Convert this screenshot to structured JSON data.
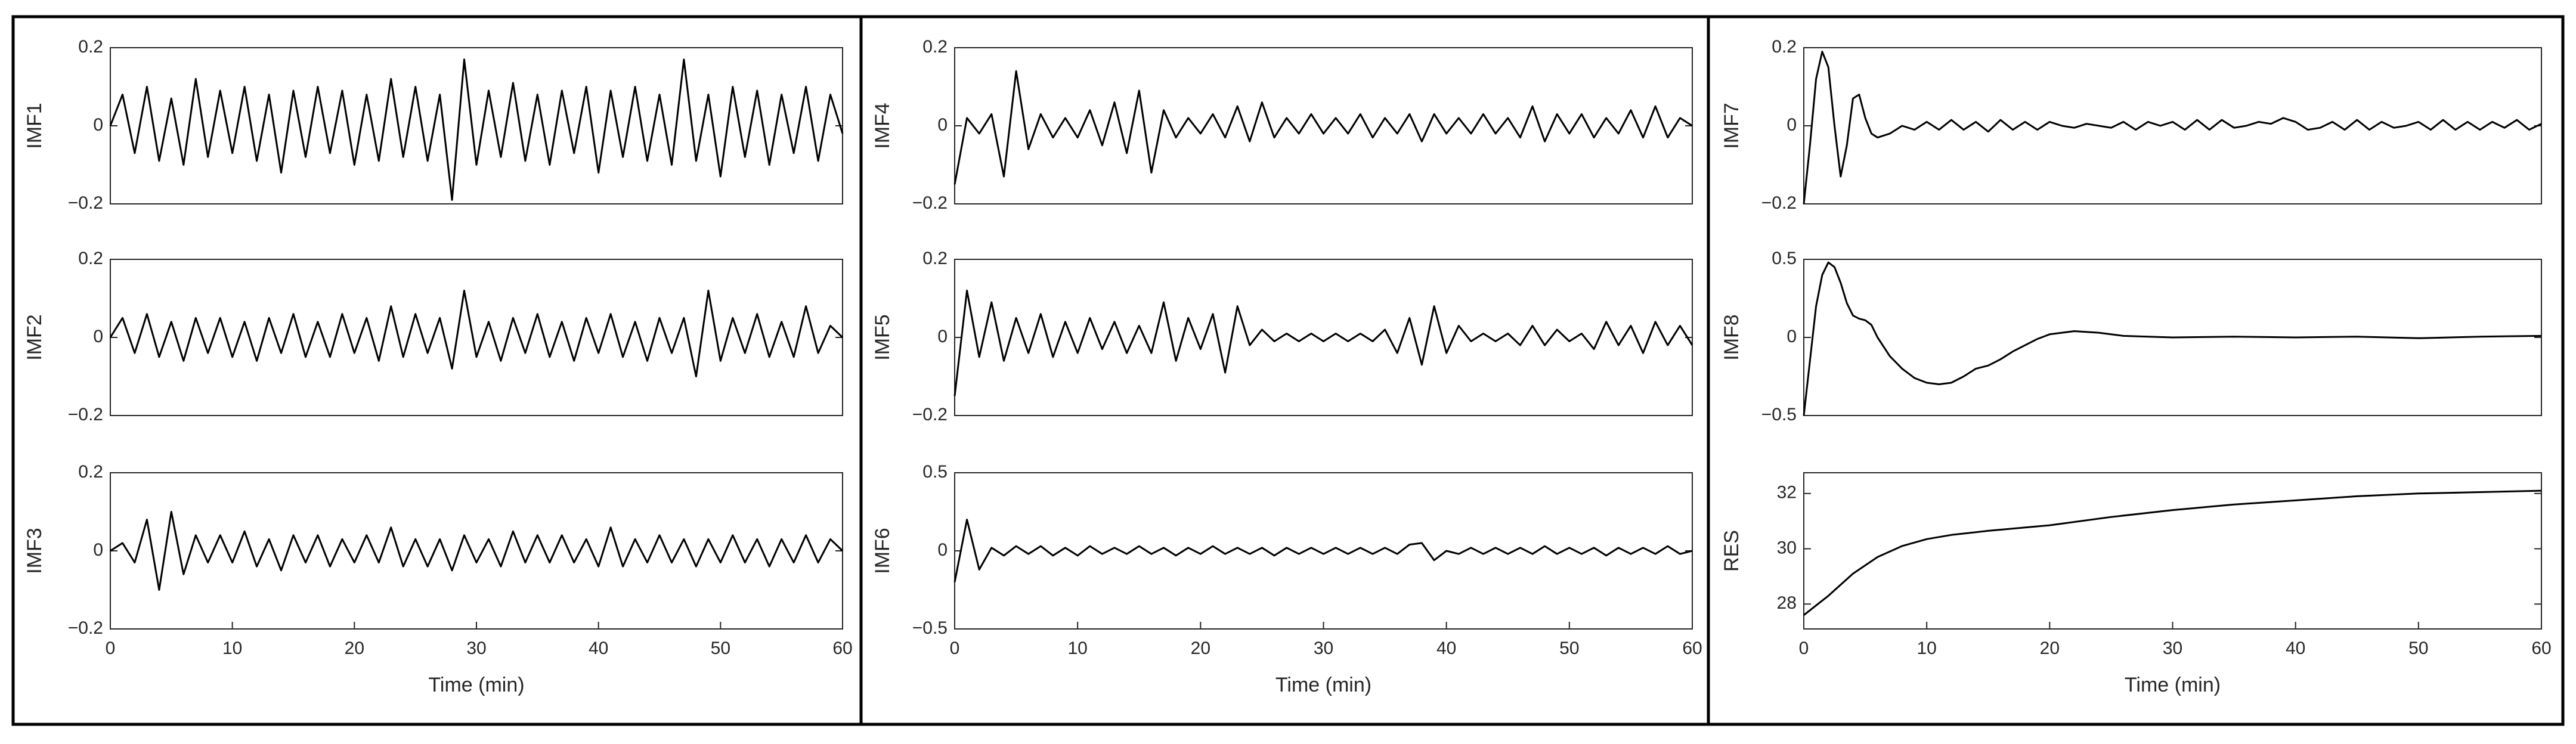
{
  "chart_data": [
    {
      "type": "line",
      "ylabel": "IMF1",
      "color": "#000000",
      "xlim": [
        0,
        60
      ],
      "ylim": [
        -0.2,
        0.2
      ],
      "yticks": [
        {
          "value": -0.2,
          "label": "−0.2"
        },
        0,
        0.2
      ],
      "x": [
        0,
        1,
        2,
        3,
        4,
        5,
        6,
        7,
        8,
        9,
        10,
        11,
        12,
        13,
        14,
        15,
        16,
        17,
        18,
        19,
        20,
        21,
        22,
        23,
        24,
        25,
        26,
        27,
        28,
        29,
        30,
        31,
        32,
        33,
        34,
        35,
        36,
        37,
        38,
        39,
        40,
        41,
        42,
        43,
        44,
        45,
        46,
        47,
        48,
        49,
        50,
        51,
        52,
        53,
        54,
        55,
        56,
        57,
        58,
        59,
        60
      ],
      "values": [
        0,
        0.08,
        -0.07,
        0.1,
        -0.09,
        0.07,
        -0.1,
        0.12,
        -0.08,
        0.09,
        -0.07,
        0.1,
        -0.09,
        0.08,
        -0.12,
        0.09,
        -0.08,
        0.1,
        -0.07,
        0.09,
        -0.1,
        0.08,
        -0.09,
        0.12,
        -0.08,
        0.1,
        -0.09,
        0.08,
        -0.19,
        0.17,
        -0.1,
        0.09,
        -0.08,
        0.11,
        -0.09,
        0.08,
        -0.1,
        0.09,
        -0.07,
        0.1,
        -0.12,
        0.09,
        -0.08,
        0.1,
        -0.09,
        0.08,
        -0.1,
        0.17,
        -0.09,
        0.08,
        -0.13,
        0.1,
        -0.08,
        0.09,
        -0.1,
        0.08,
        -0.07,
        0.1,
        -0.09,
        0.08,
        -0.02
      ]
    },
    {
      "type": "line",
      "ylabel": "IMF2",
      "color": "#000000",
      "xlim": [
        0,
        60
      ],
      "ylim": [
        -0.2,
        0.2
      ],
      "yticks": [
        {
          "value": -0.2,
          "label": "−0.2"
        },
        0,
        0.2
      ],
      "x": [
        0,
        1,
        2,
        3,
        4,
        5,
        6,
        7,
        8,
        9,
        10,
        11,
        12,
        13,
        14,
        15,
        16,
        17,
        18,
        19,
        20,
        21,
        22,
        23,
        24,
        25,
        26,
        27,
        28,
        29,
        30,
        31,
        32,
        33,
        34,
        35,
        36,
        37,
        38,
        39,
        40,
        41,
        42,
        43,
        44,
        45,
        46,
        47,
        48,
        49,
        50,
        51,
        52,
        53,
        54,
        55,
        56,
        57,
        58,
        59,
        60
      ],
      "values": [
        0,
        0.05,
        -0.04,
        0.06,
        -0.05,
        0.04,
        -0.06,
        0.05,
        -0.04,
        0.05,
        -0.05,
        0.04,
        -0.06,
        0.05,
        -0.04,
        0.06,
        -0.05,
        0.04,
        -0.05,
        0.06,
        -0.04,
        0.05,
        -0.06,
        0.08,
        -0.05,
        0.06,
        -0.04,
        0.05,
        -0.08,
        0.12,
        -0.05,
        0.04,
        -0.06,
        0.05,
        -0.04,
        0.06,
        -0.05,
        0.04,
        -0.06,
        0.05,
        -0.04,
        0.06,
        -0.05,
        0.04,
        -0.06,
        0.05,
        -0.04,
        0.05,
        -0.1,
        0.12,
        -0.06,
        0.05,
        -0.04,
        0.06,
        -0.05,
        0.04,
        -0.05,
        0.08,
        -0.04,
        0.03,
        0
      ]
    },
    {
      "type": "line",
      "ylabel": "IMF3",
      "xlabel": "Time (min)",
      "color": "#000000",
      "xlim": [
        0,
        60
      ],
      "ylim": [
        -0.2,
        0.2
      ],
      "xticks": [
        0,
        10,
        20,
        30,
        40,
        50,
        60
      ],
      "yticks": [
        {
          "value": -0.2,
          "label": "−0.2"
        },
        0,
        0.2
      ],
      "x": [
        0,
        1,
        2,
        3,
        4,
        5,
        6,
        7,
        8,
        9,
        10,
        11,
        12,
        13,
        14,
        15,
        16,
        17,
        18,
        19,
        20,
        21,
        22,
        23,
        24,
        25,
        26,
        27,
        28,
        29,
        30,
        31,
        32,
        33,
        34,
        35,
        36,
        37,
        38,
        39,
        40,
        41,
        42,
        43,
        44,
        45,
        46,
        47,
        48,
        49,
        50,
        51,
        52,
        53,
        54,
        55,
        56,
        57,
        58,
        59,
        60
      ],
      "values": [
        0,
        0.02,
        -0.03,
        0.08,
        -0.1,
        0.1,
        -0.06,
        0.04,
        -0.03,
        0.04,
        -0.03,
        0.05,
        -0.04,
        0.03,
        -0.05,
        0.04,
        -0.03,
        0.04,
        -0.04,
        0.03,
        -0.03,
        0.04,
        -0.03,
        0.06,
        -0.04,
        0.03,
        -0.04,
        0.03,
        -0.05,
        0.04,
        -0.03,
        0.03,
        -0.04,
        0.05,
        -0.03,
        0.04,
        -0.03,
        0.04,
        -0.03,
        0.03,
        -0.04,
        0.06,
        -0.04,
        0.03,
        -0.03,
        0.04,
        -0.03,
        0.03,
        -0.04,
        0.03,
        -0.03,
        0.04,
        -0.03,
        0.03,
        -0.04,
        0.03,
        -0.03,
        0.04,
        -0.03,
        0.03,
        0
      ]
    },
    {
      "type": "line",
      "ylabel": "IMF4",
      "color": "#000000",
      "xlim": [
        0,
        60
      ],
      "ylim": [
        -0.2,
        0.2
      ],
      "yticks": [
        {
          "value": -0.2,
          "label": "−0.2"
        },
        0,
        0.2
      ],
      "x": [
        0,
        1,
        2,
        3,
        4,
        5,
        6,
        7,
        8,
        9,
        10,
        11,
        12,
        13,
        14,
        15,
        16,
        17,
        18,
        19,
        20,
        21,
        22,
        23,
        24,
        25,
        26,
        27,
        28,
        29,
        30,
        31,
        32,
        33,
        34,
        35,
        36,
        37,
        38,
        39,
        40,
        41,
        42,
        43,
        44,
        45,
        46,
        47,
        48,
        49,
        50,
        51,
        52,
        53,
        54,
        55,
        56,
        57,
        58,
        59,
        60
      ],
      "values": [
        -0.15,
        0.02,
        -0.02,
        0.03,
        -0.13,
        0.14,
        -0.06,
        0.03,
        -0.03,
        0.02,
        -0.03,
        0.04,
        -0.05,
        0.06,
        -0.07,
        0.09,
        -0.12,
        0.04,
        -0.03,
        0.02,
        -0.02,
        0.03,
        -0.03,
        0.05,
        -0.04,
        0.06,
        -0.03,
        0.02,
        -0.02,
        0.03,
        -0.02,
        0.02,
        -0.02,
        0.03,
        -0.03,
        0.02,
        -0.02,
        0.03,
        -0.04,
        0.03,
        -0.02,
        0.02,
        -0.02,
        0.03,
        -0.02,
        0.02,
        -0.03,
        0.05,
        -0.04,
        0.03,
        -0.02,
        0.03,
        -0.03,
        0.02,
        -0.02,
        0.04,
        -0.03,
        0.05,
        -0.03,
        0.02,
        0
      ]
    },
    {
      "type": "line",
      "ylabel": "IMF5",
      "color": "#000000",
      "xlim": [
        0,
        60
      ],
      "ylim": [
        -0.2,
        0.2
      ],
      "yticks": [
        {
          "value": -0.2,
          "label": "−0.2"
        },
        0,
        0.2
      ],
      "x": [
        0,
        1,
        2,
        3,
        4,
        5,
        6,
        7,
        8,
        9,
        10,
        11,
        12,
        13,
        14,
        15,
        16,
        17,
        18,
        19,
        20,
        21,
        22,
        23,
        24,
        25,
        26,
        27,
        28,
        29,
        30,
        31,
        32,
        33,
        34,
        35,
        36,
        37,
        38,
        39,
        40,
        41,
        42,
        43,
        44,
        45,
        46,
        47,
        48,
        49,
        50,
        51,
        52,
        53,
        54,
        55,
        56,
        57,
        58,
        59,
        60
      ],
      "values": [
        -0.15,
        0.12,
        -0.05,
        0.09,
        -0.06,
        0.05,
        -0.04,
        0.06,
        -0.05,
        0.04,
        -0.04,
        0.05,
        -0.03,
        0.04,
        -0.04,
        0.03,
        -0.04,
        0.09,
        -0.06,
        0.05,
        -0.03,
        0.06,
        -0.09,
        0.08,
        -0.02,
        0.02,
        -0.01,
        0.01,
        -0.01,
        0.01,
        -0.01,
        0.01,
        -0.01,
        0.01,
        -0.01,
        0.02,
        -0.04,
        0.05,
        -0.07,
        0.08,
        -0.04,
        0.03,
        -0.01,
        0.01,
        -0.01,
        0.01,
        -0.02,
        0.03,
        -0.02,
        0.02,
        -0.01,
        0.01,
        -0.03,
        0.04,
        -0.02,
        0.03,
        -0.04,
        0.04,
        -0.02,
        0.03,
        -0.02
      ]
    },
    {
      "type": "line",
      "ylabel": "IMF6",
      "xlabel": "Time (min)",
      "color": "#000000",
      "xlim": [
        0,
        60
      ],
      "ylim": [
        -0.5,
        0.5
      ],
      "xticks": [
        0,
        10,
        20,
        30,
        40,
        50,
        60
      ],
      "yticks": [
        {
          "value": -0.5,
          "label": "−0.5"
        },
        0,
        0.5
      ],
      "x": [
        0,
        1,
        2,
        3,
        4,
        5,
        6,
        7,
        8,
        9,
        10,
        11,
        12,
        13,
        14,
        15,
        16,
        17,
        18,
        19,
        20,
        21,
        22,
        23,
        24,
        25,
        26,
        27,
        28,
        29,
        30,
        31,
        32,
        33,
        34,
        35,
        36,
        37,
        38,
        39,
        40,
        41,
        42,
        43,
        44,
        45,
        46,
        47,
        48,
        49,
        50,
        51,
        52,
        53,
        54,
        55,
        56,
        57,
        58,
        59,
        60
      ],
      "values": [
        -0.2,
        0.2,
        -0.12,
        0.02,
        -0.03,
        0.03,
        -0.02,
        0.03,
        -0.03,
        0.02,
        -0.03,
        0.03,
        -0.02,
        0.02,
        -0.02,
        0.03,
        -0.02,
        0.02,
        -0.03,
        0.02,
        -0.02,
        0.03,
        -0.02,
        0.02,
        -0.02,
        0.02,
        -0.03,
        0.02,
        -0.02,
        0.02,
        -0.02,
        0.02,
        -0.02,
        0.02,
        -0.02,
        0.02,
        -0.02,
        0.04,
        0.05,
        -0.06,
        0.0,
        -0.02,
        0.02,
        -0.02,
        0.02,
        -0.02,
        0.02,
        -0.02,
        0.03,
        -0.02,
        0.02,
        -0.02,
        0.02,
        -0.03,
        0.02,
        -0.02,
        0.02,
        -0.02,
        0.03,
        -0.02,
        0
      ]
    },
    {
      "type": "line",
      "ylabel": "IMF7",
      "color": "#000000",
      "xlim": [
        0,
        60
      ],
      "ylim": [
        -0.2,
        0.2
      ],
      "yticks": [
        {
          "value": -0.2,
          "label": "−0.2"
        },
        0,
        0.2
      ],
      "x": [
        0,
        0.5,
        1,
        1.5,
        2,
        2.5,
        3,
        3.5,
        4,
        4.5,
        5,
        5.5,
        6,
        7,
        8,
        9,
        10,
        11,
        12,
        13,
        14,
        15,
        16,
        17,
        18,
        19,
        20,
        21,
        22,
        23,
        24,
        25,
        26,
        27,
        28,
        29,
        30,
        31,
        32,
        33,
        34,
        35,
        36,
        37,
        38,
        39,
        40,
        41,
        42,
        43,
        44,
        45,
        46,
        47,
        48,
        49,
        50,
        51,
        52,
        53,
        54,
        55,
        56,
        57,
        58,
        59,
        60
      ],
      "values": [
        -0.2,
        -0.05,
        0.12,
        0.19,
        0.15,
        0.0,
        -0.13,
        -0.05,
        0.07,
        0.08,
        0.02,
        -0.02,
        -0.03,
        -0.02,
        0.0,
        -0.01,
        0.01,
        -0.01,
        0.015,
        -0.01,
        0.01,
        -0.015,
        0.015,
        -0.01,
        0.01,
        -0.01,
        0.01,
        0.0,
        -0.005,
        0.005,
        0.0,
        -0.005,
        0.01,
        -0.01,
        0.01,
        0.0,
        0.01,
        -0.01,
        0.015,
        -0.01,
        0.015,
        -0.005,
        0.0,
        0.01,
        0.005,
        0.02,
        0.01,
        -0.01,
        -0.005,
        0.01,
        -0.01,
        0.015,
        -0.01,
        0.01,
        -0.005,
        0.0,
        0.01,
        -0.01,
        0.015,
        -0.01,
        0.01,
        -0.01,
        0.01,
        -0.005,
        0.015,
        -0.01,
        0.005
      ]
    },
    {
      "type": "line",
      "ylabel": "IMF8",
      "color": "#000000",
      "xlim": [
        0,
        60
      ],
      "ylim": [
        -0.5,
        0.5
      ],
      "yticks": [
        {
          "value": -0.5,
          "label": "−0.5"
        },
        0,
        0.5
      ],
      "x": [
        0,
        0.5,
        1,
        1.5,
        2,
        2.5,
        3,
        3.5,
        4,
        4.5,
        5,
        5.5,
        6,
        7,
        8,
        9,
        10,
        11,
        12,
        13,
        14,
        15,
        16,
        17,
        18,
        19,
        20,
        22,
        24,
        26,
        28,
        30,
        35,
        40,
        45,
        50,
        55,
        60
      ],
      "values": [
        -0.5,
        -0.15,
        0.2,
        0.4,
        0.48,
        0.45,
        0.35,
        0.22,
        0.14,
        0.12,
        0.11,
        0.08,
        0.0,
        -0.12,
        -0.2,
        -0.26,
        -0.29,
        -0.3,
        -0.29,
        -0.25,
        -0.2,
        -0.18,
        -0.14,
        -0.09,
        -0.05,
        -0.01,
        0.02,
        0.04,
        0.03,
        0.01,
        0.005,
        0.0,
        0.005,
        0.0,
        0.005,
        -0.005,
        0.005,
        0.01
      ]
    },
    {
      "type": "line",
      "ylabel": "RES",
      "xlabel": "Time (min)",
      "color": "#000000",
      "xlim": [
        0,
        60
      ],
      "ylim": [
        27.1,
        32.75
      ],
      "xticks": [
        0,
        10,
        20,
        30,
        40,
        50,
        60
      ],
      "yticks": [
        28,
        30,
        32
      ],
      "x": [
        0,
        2,
        4,
        6,
        8,
        10,
        12,
        15,
        20,
        25,
        30,
        35,
        40,
        45,
        50,
        55,
        60
      ],
      "values": [
        27.6,
        28.3,
        29.1,
        29.7,
        30.1,
        30.35,
        30.5,
        30.65,
        30.85,
        31.15,
        31.4,
        31.6,
        31.75,
        31.9,
        32.0,
        32.05,
        32.1
      ]
    }
  ]
}
